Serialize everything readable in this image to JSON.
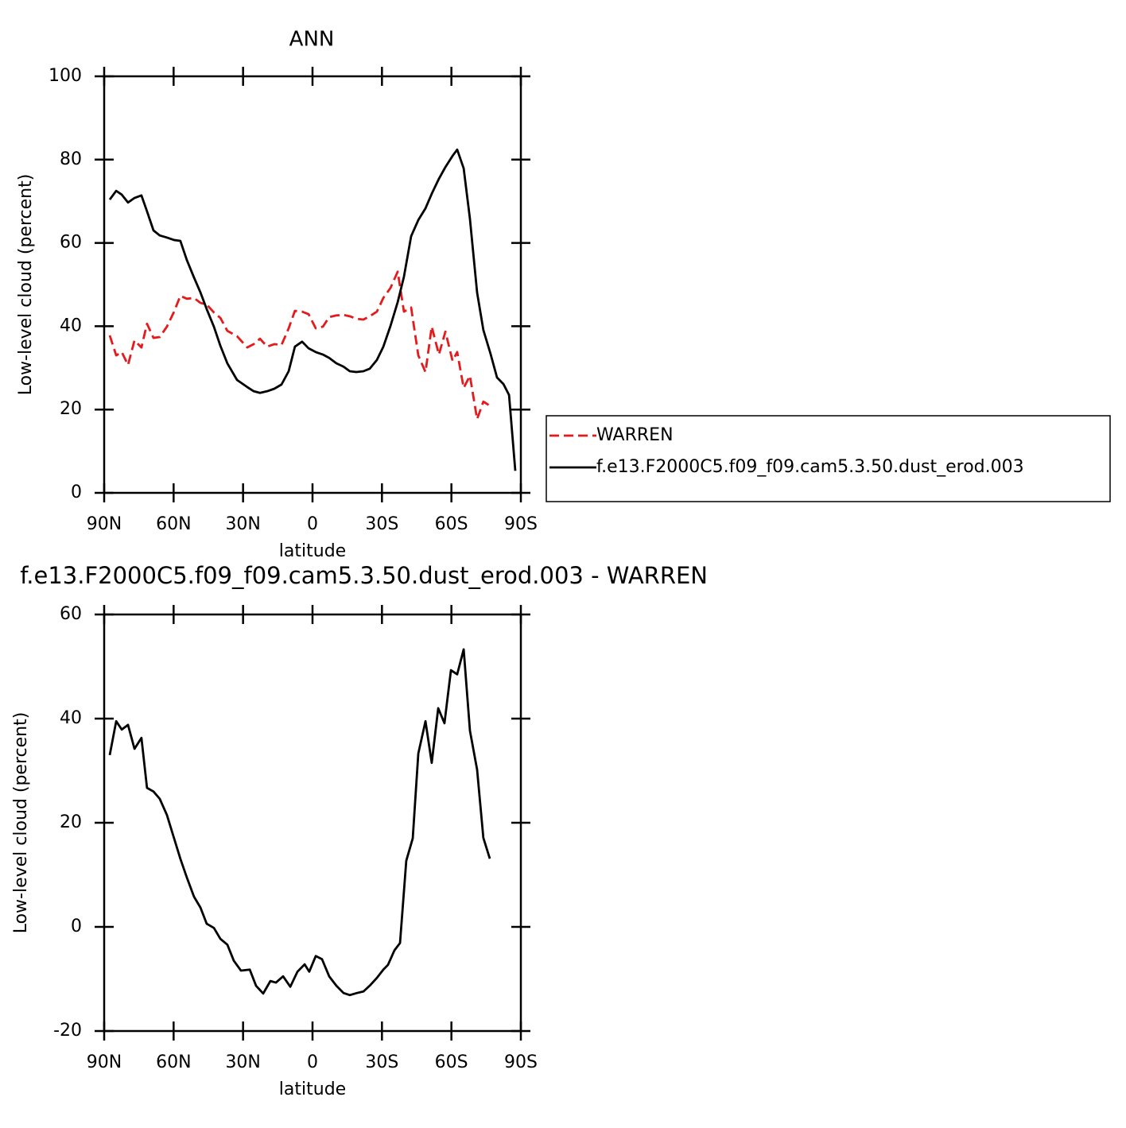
{
  "chart_data": [
    {
      "type": "line",
      "title": "ANN",
      "xlabel": "latitude",
      "ylabel": "Low-level cloud (percent)",
      "xlim": [
        90,
        -90
      ],
      "ylim": [
        0,
        100
      ],
      "xticks": [
        {
          "value": 90,
          "label": "90N"
        },
        {
          "value": 60,
          "label": "60N"
        },
        {
          "value": 30,
          "label": "30N"
        },
        0,
        {
          "value": -30,
          "label": "30S"
        },
        {
          "value": -60,
          "label": "60S"
        },
        {
          "value": -90,
          "label": "90S"
        }
      ],
      "yticks": [
        0,
        20,
        40,
        60,
        80,
        100
      ],
      "legend": "right",
      "x": [
        87.6,
        84.8,
        82.4,
        79.7,
        76.9,
        73.9,
        71.5,
        68.7,
        66.0,
        62.9,
        59.8,
        57.1,
        54.3,
        51.2,
        48.4,
        45.7,
        42.6,
        39.8,
        36.8,
        32.6,
        28.2,
        25.4,
        22.7,
        19.6,
        16.5,
        13.4,
        10.3,
        7.6,
        4.5,
        1.7,
        -1.4,
        -4.5,
        -7.2,
        -10.3,
        -13.4,
        -16.1,
        -18.9,
        -22,
        -24.7,
        -27.8,
        -30.6,
        -33.7,
        -36.8,
        -39.5,
        -42.6,
        -45.7,
        -48.8,
        -51.5,
        -54.6,
        -57.4,
        -60.5,
        -62.5,
        -65.3,
        -68,
        -71.1,
        -73.8,
        -76.9,
        -79.7,
        -82.5,
        -84.9,
        -87.6
      ],
      "series": [
        {
          "name": "WARREN",
          "color": "#e41a1c",
          "dash": true,
          "values": [
            37.8,
            33,
            33.8,
            30.7,
            36.6,
            34.9,
            40.6,
            37.2,
            37.4,
            39.9,
            43.5,
            47.3,
            46.6,
            46.8,
            45.6,
            45.2,
            43.3,
            42,
            38.9,
            37.6,
            34.9,
            35.7,
            37,
            35.1,
            35.7,
            35.5,
            39.5,
            43.7,
            43.5,
            42.9,
            39.5,
            39.9,
            42.2,
            42.6,
            42.7,
            42.4,
            41.8,
            41.6,
            42.4,
            43.5,
            46.8,
            49.2,
            53.1,
            43.5,
            44.5,
            33,
            29,
            39.9,
            33.2,
            38.7,
            31.7,
            33.8,
            25.2,
            28.1,
            17.7,
            21.9,
            20.8,
            null,
            null,
            null,
            null
          ]
        },
        {
          "name": "f.e13.F2000C5.f09_f09.cam5.3.50.dust_erod.003",
          "color": "#000000",
          "dash": false,
          "values": [
            70.4,
            72.5,
            71.6,
            69.7,
            70.8,
            71.4,
            67.6,
            63,
            61.8,
            61.3,
            60.7,
            60.5,
            55.9,
            51.7,
            48.1,
            44.1,
            39.9,
            35.3,
            31.1,
            27.1,
            25.4,
            24.4,
            24,
            24.4,
            25,
            26,
            29.2,
            35.1,
            36.3,
            34.7,
            33.8,
            33.2,
            32.4,
            31.1,
            30.3,
            29.2,
            29,
            29.2,
            29.8,
            31.9,
            35.1,
            40.1,
            45.8,
            51.9,
            61.6,
            65.5,
            68.3,
            71.8,
            75.4,
            78.2,
            80.9,
            82.4,
            77.9,
            65.8,
            48.1,
            39.1,
            33.4,
            27.7,
            26.1,
            23.5,
            5.3
          ]
        }
      ]
    },
    {
      "type": "line",
      "title": "f.e13.F2000C5.f09_f09.cam5.3.50.dust_erod.003 - WARREN",
      "xlabel": "latitude",
      "ylabel": "Low-level cloud (percent)",
      "xlim": [
        90,
        -90
      ],
      "ylim": [
        -20,
        60
      ],
      "xticks": [
        {
          "value": 90,
          "label": "90N"
        },
        {
          "value": 60,
          "label": "60N"
        },
        {
          "value": 30,
          "label": "30N"
        },
        0,
        {
          "value": -30,
          "label": "30S"
        },
        {
          "value": -60,
          "label": "60S"
        },
        {
          "value": -90,
          "label": "90S"
        }
      ],
      "yticks": [
        -20,
        0,
        20,
        40,
        60
      ],
      "x": [
        87.6,
        84.8,
        82.4,
        79.7,
        76.9,
        73.9,
        71.5,
        68.7,
        66.0,
        62.9,
        59.8,
        57.1,
        54.3,
        51.2,
        48.4,
        45.7,
        42.6,
        39.8,
        36.8,
        34.0,
        30.9,
        27.1,
        24.4,
        21.3,
        18.2,
        15.8,
        12.7,
        9.6,
        6.5,
        3.4,
        1.4,
        -1.4,
        -4.1,
        -7.2,
        -10.3,
        -13.4,
        -16.1,
        -19.2,
        -22,
        -24.7,
        -27.8,
        -30.6,
        -32.6,
        -35.4,
        -37.8,
        -40.5,
        -43.3,
        -45.7,
        -48.8,
        -51.5,
        -54.3,
        -57,
        -59.8,
        -62.5,
        -65.3,
        -68,
        -71.1,
        -73.8,
        -76.6
      ],
      "series": [
        {
          "color": "#000000",
          "dash": false,
          "values": [
            33,
            39.5,
            37.9,
            38.8,
            34.2,
            36.3,
            26.7,
            26,
            24.6,
            21.5,
            17,
            13.1,
            9.5,
            5.8,
            3.7,
            0.6,
            -0.2,
            -2.3,
            -3.4,
            -6.5,
            -8.4,
            -8.2,
            -11.3,
            -12.8,
            -10.4,
            -10.7,
            -9.5,
            -11.5,
            -8.6,
            -7.2,
            -8.6,
            -5.6,
            -6.2,
            -9.5,
            -11.3,
            -12.7,
            -13.1,
            -12.7,
            -12.4,
            -11.3,
            -9.8,
            -8.2,
            -7.3,
            -4.5,
            -3.1,
            12.7,
            17,
            33.3,
            39.5,
            31.5,
            42,
            39.1,
            49.3,
            48.5,
            53.3,
            37.7,
            30.2,
            17.1,
            13.1
          ]
        }
      ]
    }
  ]
}
